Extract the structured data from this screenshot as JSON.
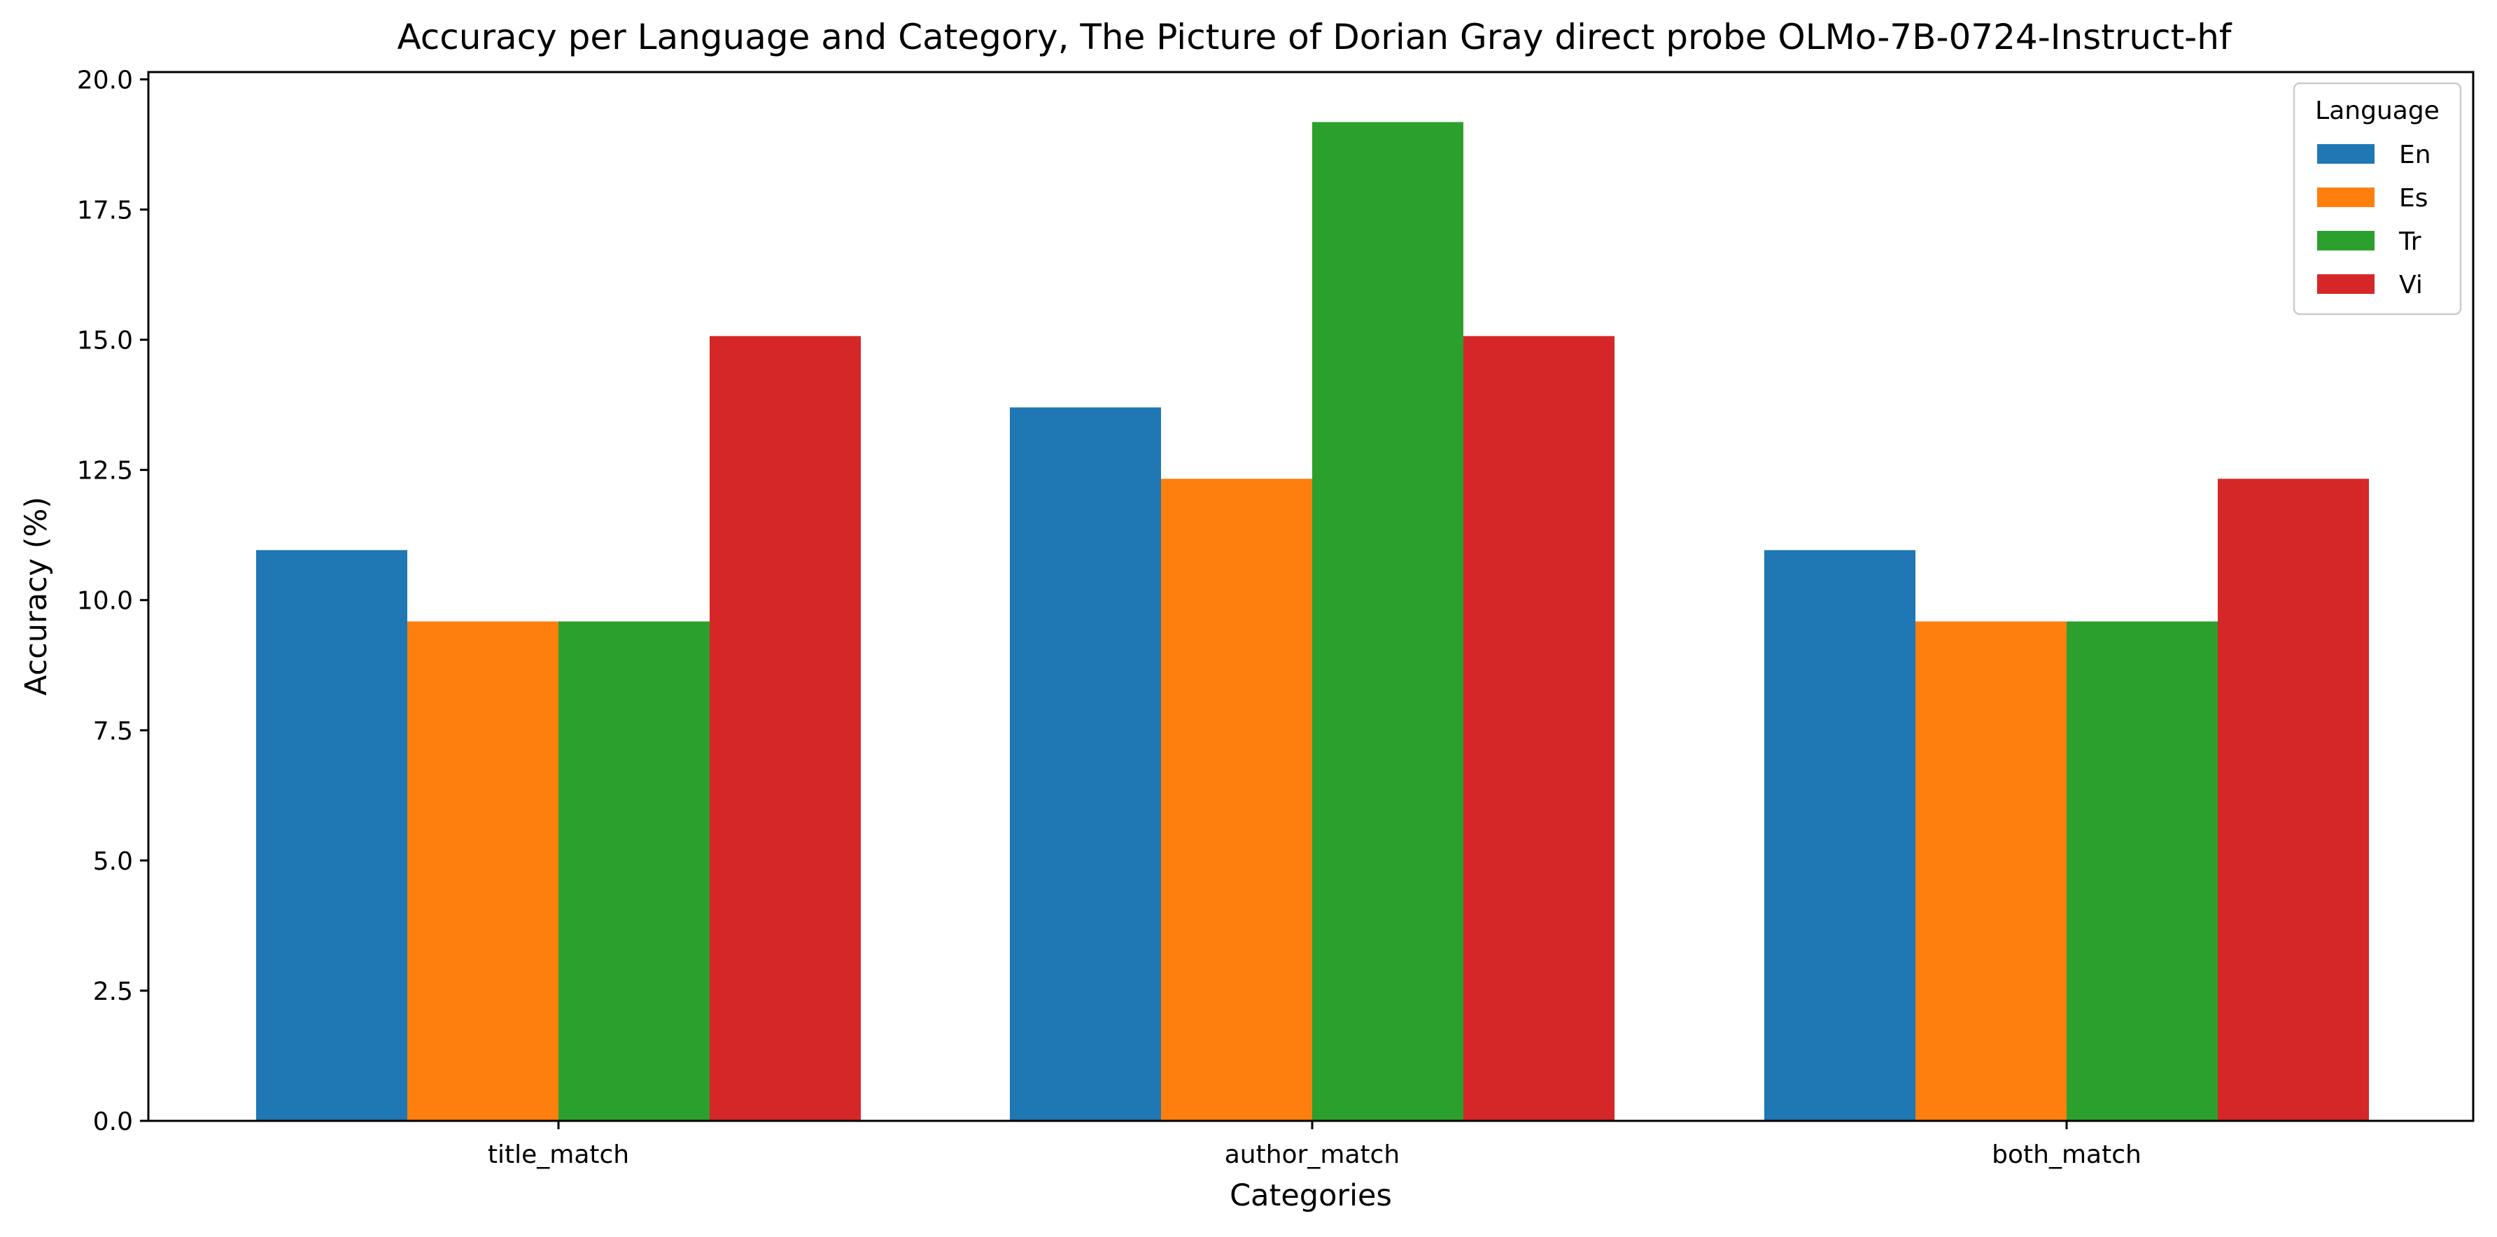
{
  "chart_data": {
    "type": "bar",
    "title": "Accuracy per Language and Category, The Picture of Dorian Gray direct probe OLMo-7B-0724-Instruct-hf",
    "xlabel": "Categories",
    "ylabel": "Accuracy (%)",
    "categories": [
      "title_match",
      "author_match",
      "both_match"
    ],
    "series": [
      {
        "name": "En",
        "color": "#1f77b4",
        "values": [
          10.96,
          13.7,
          10.96
        ]
      },
      {
        "name": "Es",
        "color": "#ff7f0e",
        "values": [
          9.59,
          12.33,
          9.59
        ]
      },
      {
        "name": "Tr",
        "color": "#2ca02c",
        "values": [
          9.59,
          19.18,
          9.59
        ]
      },
      {
        "name": "Vi",
        "color": "#d62728",
        "values": [
          15.07,
          15.07,
          12.33
        ]
      }
    ],
    "ylim": [
      0,
      20.14
    ],
    "yticks": [
      "0.0",
      "2.5",
      "5.0",
      "7.5",
      "10.0",
      "12.5",
      "15.0",
      "17.5",
      "20.0"
    ],
    "grid": false,
    "legend": {
      "title": "Language",
      "placement": "top-right"
    }
  }
}
